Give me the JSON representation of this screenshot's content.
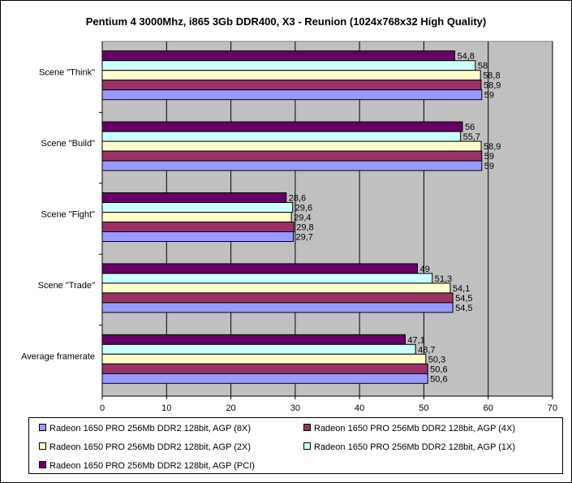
{
  "chart_data": {
    "type": "bar",
    "orientation": "horizontal",
    "title": "Pentium 4 3000Mhz, i865 3Gb DDR400, X3 - Reunion (1024x768x32 High Quality)",
    "categories": [
      "Scene \"Think\"",
      "Scene \"Build\"",
      "Scene \"Fight\"",
      "Scene \"Trade\"",
      "Average framerate"
    ],
    "series": [
      {
        "name": "Radeon 1650 PRO 256Mb DDR2 128bit, AGP (PCI)",
        "color": "#660066",
        "values": [
          54.8,
          56,
          28.6,
          49,
          47.1
        ],
        "labels": [
          "54,8",
          "56",
          "28,6",
          "49",
          "47,1"
        ]
      },
      {
        "name": "Radeon 1650 PRO 256Mb DDR2 128bit, AGP (1X)",
        "color": "#CCFFFF",
        "values": [
          58,
          55.7,
          29.6,
          51.3,
          48.7
        ],
        "labels": [
          "58",
          "55,7",
          "29,6",
          "51,3",
          "48,7"
        ]
      },
      {
        "name": "Radeon 1650 PRO 256Mb DDR2 128bit, AGP (2X)",
        "color": "#FFFFCC",
        "values": [
          58.8,
          58.9,
          29.4,
          54.1,
          50.3
        ],
        "labels": [
          "58,8",
          "58,9",
          "29,4",
          "54,1",
          "50,3"
        ]
      },
      {
        "name": "Radeon 1650 PRO 256Mb DDR2 128bit, AGP (4X)",
        "color": "#993366",
        "values": [
          58.9,
          59,
          29.8,
          54.5,
          50.6
        ],
        "labels": [
          "58,9",
          "59",
          "29,8",
          "54,5",
          "50,6"
        ]
      },
      {
        "name": "Radeon 1650 PRO 256Mb DDR2 128bit, AGP (8X)",
        "color": "#9999FF",
        "values": [
          59,
          59,
          29.7,
          54.5,
          50.6
        ],
        "labels": [
          "59",
          "59",
          "29,7",
          "54,5",
          "50,6"
        ]
      }
    ],
    "xlim": [
      0,
      70
    ],
    "xticks": [
      "0",
      "10",
      "20",
      "30",
      "40",
      "50",
      "60",
      "70"
    ],
    "grid": true,
    "legend_position": "bottom",
    "plot_background": "#C0C0C0",
    "legend_order": [
      "Radeon 1650 PRO 256Mb DDR2 128bit, AGP (8X)",
      "Radeon 1650 PRO 256Mb DDR2 128bit, AGP (4X)",
      "Radeon 1650 PRO 256Mb DDR2 128bit, AGP (2X)",
      "Radeon 1650 PRO 256Mb DDR2 128bit, AGP (1X)",
      "Radeon 1650 PRO 256Mb DDR2 128bit, AGP (PCI)"
    ]
  }
}
